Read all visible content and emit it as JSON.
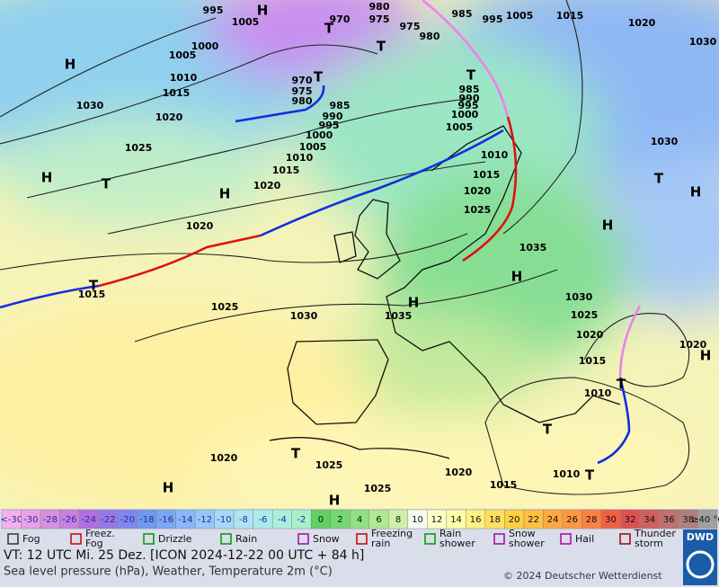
{
  "scale": {
    "labels": [
      "<-30",
      "-30",
      "-28",
      "-26",
      "-24",
      "-22",
      "-20",
      "-18",
      "-16",
      "-14",
      "-12",
      "-10",
      "-8",
      "-6",
      "-4",
      "-2",
      "0",
      "2",
      "4",
      "6",
      "8",
      "10",
      "12",
      "14",
      "16",
      "18",
      "20",
      "22",
      "24",
      "26",
      "28",
      "30",
      "32",
      "34",
      "36",
      "38",
      "≥40 °C"
    ],
    "colors": [
      "#f4b0f0",
      "#e8a0e8",
      "#d890e0",
      "#c880e0",
      "#b070e0",
      "#9878e8",
      "#8088f0",
      "#7098f0",
      "#78a8f4",
      "#88b8f8",
      "#98c8f8",
      "#a8d8f8",
      "#b0e4f4",
      "#a8ecec",
      "#a8f0dc",
      "#a8f0c8",
      "#60d060",
      "#74d874",
      "#90e084",
      "#b0e894",
      "#d0f0aa",
      "#f8fcf0",
      "#ffffc8",
      "#ffffa8",
      "#fff080",
      "#ffe060",
      "#ffd040",
      "#ffc040",
      "#ffa840",
      "#ff9840",
      "#ff8040",
      "#f06040",
      "#e05050",
      "#d06060",
      "#c07070",
      "#b08080",
      "#a0a0a0"
    ]
  },
  "legend": [
    [
      "Fog"
    ],
    [
      "Freez.",
      "Fog"
    ],
    [
      "Drizzle"
    ],
    [
      "Rain"
    ],
    [
      "Snow"
    ],
    [
      "Freezing",
      "rain"
    ],
    [
      "Rain",
      "shower"
    ],
    [
      "Snow",
      "shower"
    ],
    [
      "Hail"
    ],
    [
      "Thunder",
      "storm"
    ]
  ],
  "footer": {
    "line1": "VT: 12 UTC Mi.  25 Dez. [ICON 2024-12-22  00 UTC + 84 h]",
    "line2": "Sea level pressure (hPa), Weather, Temperature 2m (°C)",
    "copyright": "© 2024 Deutscher Wetterdienst",
    "logo": "DWD"
  },
  "map": {
    "isobars": [
      "995",
      "1005",
      "970",
      "980",
      "975",
      "975",
      "980",
      "985",
      "995",
      "1005",
      "1015",
      "1020",
      "1030",
      "1000",
      "1005",
      "1010",
      "1015",
      "1020",
      "1025",
      "1030",
      "970",
      "975",
      "980",
      "985",
      "990",
      "995",
      "1000",
      "1005",
      "1010",
      "1015",
      "1020",
      "985",
      "990",
      "995",
      "1000",
      "1005",
      "1010",
      "1015",
      "1020",
      "1025",
      "1035",
      "1030",
      "1020",
      "1015",
      "1025",
      "1030",
      "1035",
      "1030",
      "1025",
      "1020",
      "1015",
      "1010",
      "1020",
      "1020",
      "1025",
      "1025",
      "1020",
      "1015",
      "1010"
    ],
    "centers": [
      "H",
      "T",
      "T",
      "H",
      "T",
      "T",
      "H",
      "T",
      "H",
      "T",
      "H",
      "H",
      "H",
      "H",
      "T",
      "T",
      "T",
      "T",
      "H",
      "H",
      "T",
      "H"
    ]
  }
}
